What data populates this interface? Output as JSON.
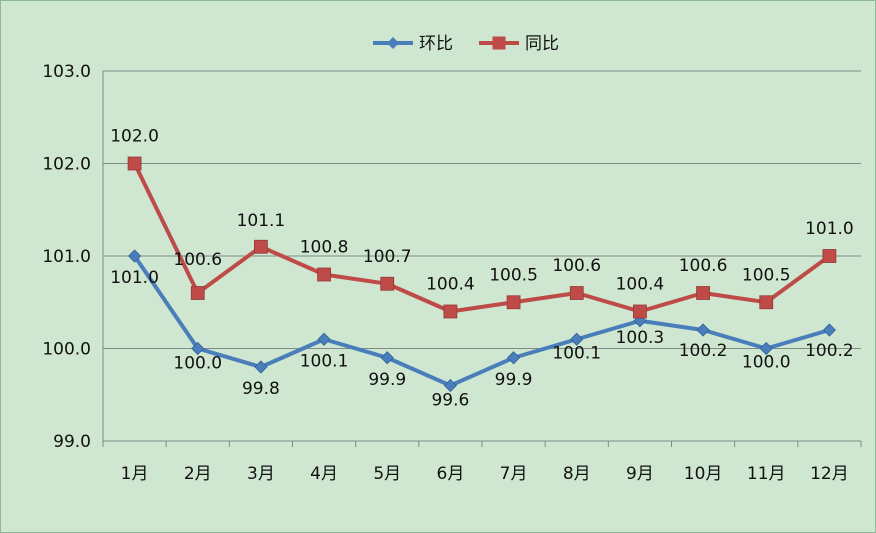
{
  "chart_data": {
    "type": "line",
    "categories": [
      "1月",
      "2月",
      "3月",
      "4月",
      "5月",
      "6月",
      "7月",
      "8月",
      "9月",
      "10月",
      "11月",
      "12月"
    ],
    "series": [
      {
        "name": "环比",
        "color": "#4a7ebb",
        "marker": "diamond",
        "values": [
          101.0,
          100.0,
          99.8,
          100.1,
          99.9,
          99.6,
          99.9,
          100.1,
          100.3,
          100.2,
          100.0,
          100.2
        ],
        "labels": [
          "101.0",
          "100.0",
          "99.8",
          "100.1",
          "99.9",
          "99.6",
          "99.9",
          "100.1",
          "100.3",
          "100.2",
          "100.0",
          "100.2"
        ]
      },
      {
        "name": "同比",
        "color": "#be4b48",
        "marker": "square",
        "values": [
          102.0,
          100.6,
          101.1,
          100.8,
          100.7,
          100.4,
          100.5,
          100.6,
          100.4,
          100.6,
          100.5,
          101.0
        ],
        "labels": [
          "102.0",
          "100.6",
          "101.1",
          "100.8",
          "100.7",
          "100.4",
          "100.5",
          "100.6",
          "100.4",
          "100.6",
          "100.5",
          "101.0"
        ]
      }
    ],
    "yticks": [
      "99.0",
      "100.0",
      "101.0",
      "102.0",
      "103.0"
    ],
    "ylim": [
      99.0,
      103.0
    ],
    "grid": true,
    "legend": "top-center",
    "title": "",
    "xlabel": "",
    "ylabel": ""
  }
}
